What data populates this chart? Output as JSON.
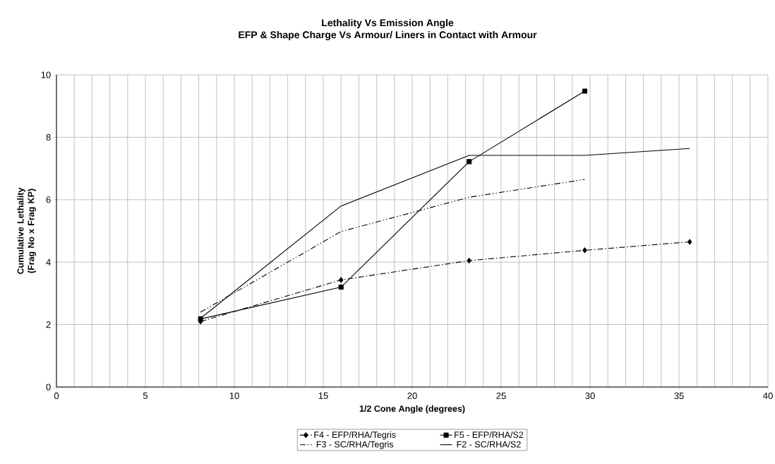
{
  "chart_data": {
    "type": "line",
    "title": "Lethality Vs Emission Angle",
    "subtitle": "EFP & Shape Charge Vs Armour/ Liners in Contact with Armour",
    "xlabel": "1/2 Cone Angle (degrees)",
    "ylabel": "Cumulative Lethality (Frag No x Frag KP)",
    "xlim": [
      0,
      40
    ],
    "ylim": [
      0,
      10
    ],
    "xticks": [
      0,
      5,
      10,
      15,
      20,
      25,
      30,
      35,
      40
    ],
    "yticks": [
      0,
      2,
      4,
      6,
      8,
      10
    ],
    "grid": true,
    "legend": "bottom",
    "series": [
      {
        "name": "F4 - EFP/RHA/Tegris",
        "color": "#000000",
        "marker": "diamond",
        "line_style": "dashdot",
        "x": [
          8.1,
          16,
          23.2,
          29.7,
          35.6
        ],
        "values": [
          2.1,
          3.43,
          4.05,
          4.38,
          4.65
        ]
      },
      {
        "name": "F5 - EFP/RHA/S2",
        "color": "#000000",
        "marker": "square",
        "line_style": "solid",
        "x": [
          8.1,
          16,
          23.2,
          29.7
        ],
        "values": [
          2.18,
          3.2,
          7.22,
          9.48
        ]
      },
      {
        "name": "F3 - SC/RHA/Tegris",
        "color": "#000000",
        "marker": "none",
        "line_style": "dashdotdot",
        "x": [
          8.1,
          16,
          23.2,
          29.7
        ],
        "values": [
          2.4,
          4.98,
          6.08,
          6.65
        ]
      },
      {
        "name": "F2 - SC/RHA/S2",
        "color": "#000000",
        "marker": "none",
        "line_style": "solid",
        "x": [
          8.1,
          16,
          23.2,
          29.7,
          35.6
        ],
        "values": [
          2.2,
          5.8,
          7.42,
          7.42,
          7.64
        ]
      }
    ]
  }
}
